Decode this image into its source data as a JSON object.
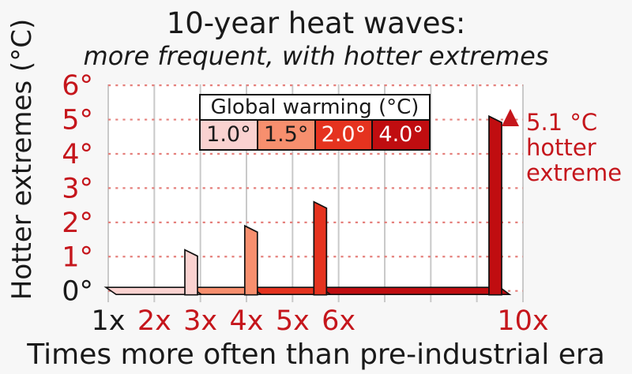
{
  "page": {
    "background": "#f7f7f7",
    "accent_red": "#c5161c"
  },
  "chart_data": {
    "type": "bar",
    "title": "10-year heat waves:",
    "subtitle": "more frequent, with hotter extremes",
    "ylabel": "Hotter extremes (°C)",
    "xlabel": "Times more often than pre-industrial era",
    "x_axis": {
      "range": [
        1,
        10
      ],
      "ticks": [
        {
          "value": 1,
          "label": "1x",
          "color": "#1a1a1a"
        },
        {
          "value": 2,
          "label": "2x",
          "color": "#c5161c"
        },
        {
          "value": 3,
          "label": "3x",
          "color": "#c5161c"
        },
        {
          "value": 4,
          "label": "4x",
          "color": "#c5161c"
        },
        {
          "value": 5,
          "label": "5x",
          "color": "#c5161c"
        },
        {
          "value": 6,
          "label": "6x",
          "color": "#c5161c"
        },
        {
          "value": 10,
          "label": "10x",
          "color": "#c5161c"
        }
      ]
    },
    "y_axis": {
      "range": [
        0,
        6
      ],
      "ticks": [
        {
          "value": 0,
          "label": "0°",
          "color": "#1a1a1a"
        },
        {
          "value": 1,
          "label": "1°",
          "color": "#c5161c"
        },
        {
          "value": 2,
          "label": "2°",
          "color": "#c5161c"
        },
        {
          "value": 3,
          "label": "3°",
          "color": "#c5161c"
        },
        {
          "value": 4,
          "label": "4°",
          "color": "#c5161c"
        },
        {
          "value": 5,
          "label": "5°",
          "color": "#c5161c"
        },
        {
          "value": 6,
          "label": "6°",
          "color": "#c5161c"
        }
      ]
    },
    "grid": {
      "vertical": {
        "style": "solid",
        "color": "#c9c9c9"
      },
      "horizontal": {
        "style": "dotted",
        "color": "#e5807c"
      }
    },
    "legend": {
      "position": "top-center",
      "title": "Global warming (°C)",
      "entries": [
        {
          "label": "1.0°",
          "color": "#fad2d0",
          "text_color": "#1a1a1a"
        },
        {
          "label": "1.5°",
          "color": "#f78f6e",
          "text_color": "#1a1a1a"
        },
        {
          "label": "2.0°",
          "color": "#e5331f",
          "text_color": "#ffffff"
        },
        {
          "label": "4.0°",
          "color": "#c00d10",
          "text_color": "#ffffff"
        }
      ]
    },
    "series": [
      {
        "global_warming": "1.0°",
        "frequency_x": 2.8,
        "hotter_extreme_c": 1.2,
        "color": "#fad2d0"
      },
      {
        "global_warming": "1.5°",
        "frequency_x": 4.1,
        "hotter_extreme_c": 1.9,
        "color": "#f78f6e"
      },
      {
        "global_warming": "2.0°",
        "frequency_x": 5.6,
        "hotter_extreme_c": 2.6,
        "color": "#e5331f"
      },
      {
        "global_warming": "4.0°",
        "frequency_x": 9.4,
        "hotter_extreme_c": 5.1,
        "color": "#c00d10"
      }
    ],
    "annotation": {
      "text": "5.1 °C\nhotter\nextreme",
      "marker": "up-triangle",
      "color": "#c5161c"
    }
  }
}
